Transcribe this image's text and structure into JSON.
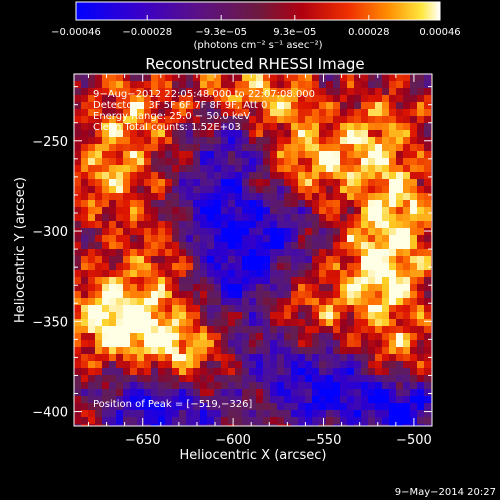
{
  "chart_data": {
    "type": "heatmap",
    "title": "Reconstructed RHESSI Image",
    "xlabel": "Heliocentric X (arcsec)",
    "ylabel": "Heliocentric Y (arcsec)",
    "xlim": [
      -688,
      -490
    ],
    "ylim": [
      -408,
      -213
    ],
    "x_ticks": [
      -650,
      -600,
      -550,
      -500
    ],
    "y_ticks": [
      -250,
      -300,
      -350,
      -400
    ],
    "x_tick_labels": [
      "−650",
      "−600",
      "−550",
      "−500"
    ],
    "y_tick_labels": [
      "−250",
      "−300",
      "−350",
      "−400"
    ],
    "grid": false,
    "colormap": "red-temperature (blue-purple-red-orange-yellow-white)",
    "colorbar": {
      "position": "top",
      "range": [
        -0.00046,
        0.00046
      ],
      "tick_values": [
        -0.00046,
        -0.00028,
        -9.3e-05,
        9.3e-05,
        0.00028,
        0.00046
      ],
      "tick_labels": [
        "−0.00046",
        "−0.00028",
        "−9.3e−05",
        "9.3e−05",
        "0.00028",
        "0.00046"
      ],
      "unit_label": "(photons cm⁻² s⁻¹ asec⁻²)"
    },
    "annotations": [
      "9−Aug−2012 22:05:48.000 to 22:07:08.000",
      "Detectors: 3F 5F 6F 7F 8F 9F, Att 0",
      "Energy Range: 25.0 − 50.0 keV",
      "Clean    Total counts: 1.52E+03"
    ],
    "peak_label": "Position of Peak = [−519,−326]",
    "peak": {
      "x": -519,
      "y": -326
    },
    "timestamp": "9−May−2014 20:27",
    "bright_regions": [
      {
        "x": -519,
        "y": -326,
        "level": 1.0
      },
      {
        "x": -510,
        "y": -290,
        "level": 0.85
      },
      {
        "x": -520,
        "y": -250,
        "level": 0.7
      },
      {
        "x": -512,
        "y": -370,
        "level": 0.65
      },
      {
        "x": -655,
        "y": -352,
        "level": 0.85
      },
      {
        "x": -628,
        "y": -368,
        "level": 0.75
      },
      {
        "x": -672,
        "y": -345,
        "level": 0.6
      },
      {
        "x": -668,
        "y": -270,
        "level": 0.6
      },
      {
        "x": -655,
        "y": -236,
        "level": 0.55
      },
      {
        "x": -555,
        "y": -262,
        "level": 0.65
      },
      {
        "x": -575,
        "y": -228,
        "level": 0.55
      },
      {
        "x": -600,
        "y": -225,
        "level": 0.5
      },
      {
        "x": -560,
        "y": -345,
        "level": 0.45
      },
      {
        "x": -640,
        "y": -310,
        "level": 0.4
      }
    ],
    "dim_regions": [
      {
        "x": -610,
        "y": -290,
        "level": -0.9
      },
      {
        "x": -600,
        "y": -250,
        "level": -0.7
      },
      {
        "x": -595,
        "y": -325,
        "level": -0.8
      },
      {
        "x": -575,
        "y": -300,
        "level": -0.6
      },
      {
        "x": -650,
        "y": -395,
        "level": -0.8
      },
      {
        "x": -620,
        "y": -402,
        "level": -0.6
      },
      {
        "x": -555,
        "y": -390,
        "level": -0.7
      },
      {
        "x": -505,
        "y": -400,
        "level": -1.0
      },
      {
        "x": -530,
        "y": -385,
        "level": -0.6
      },
      {
        "x": -580,
        "y": -370,
        "level": -0.5
      }
    ]
  }
}
